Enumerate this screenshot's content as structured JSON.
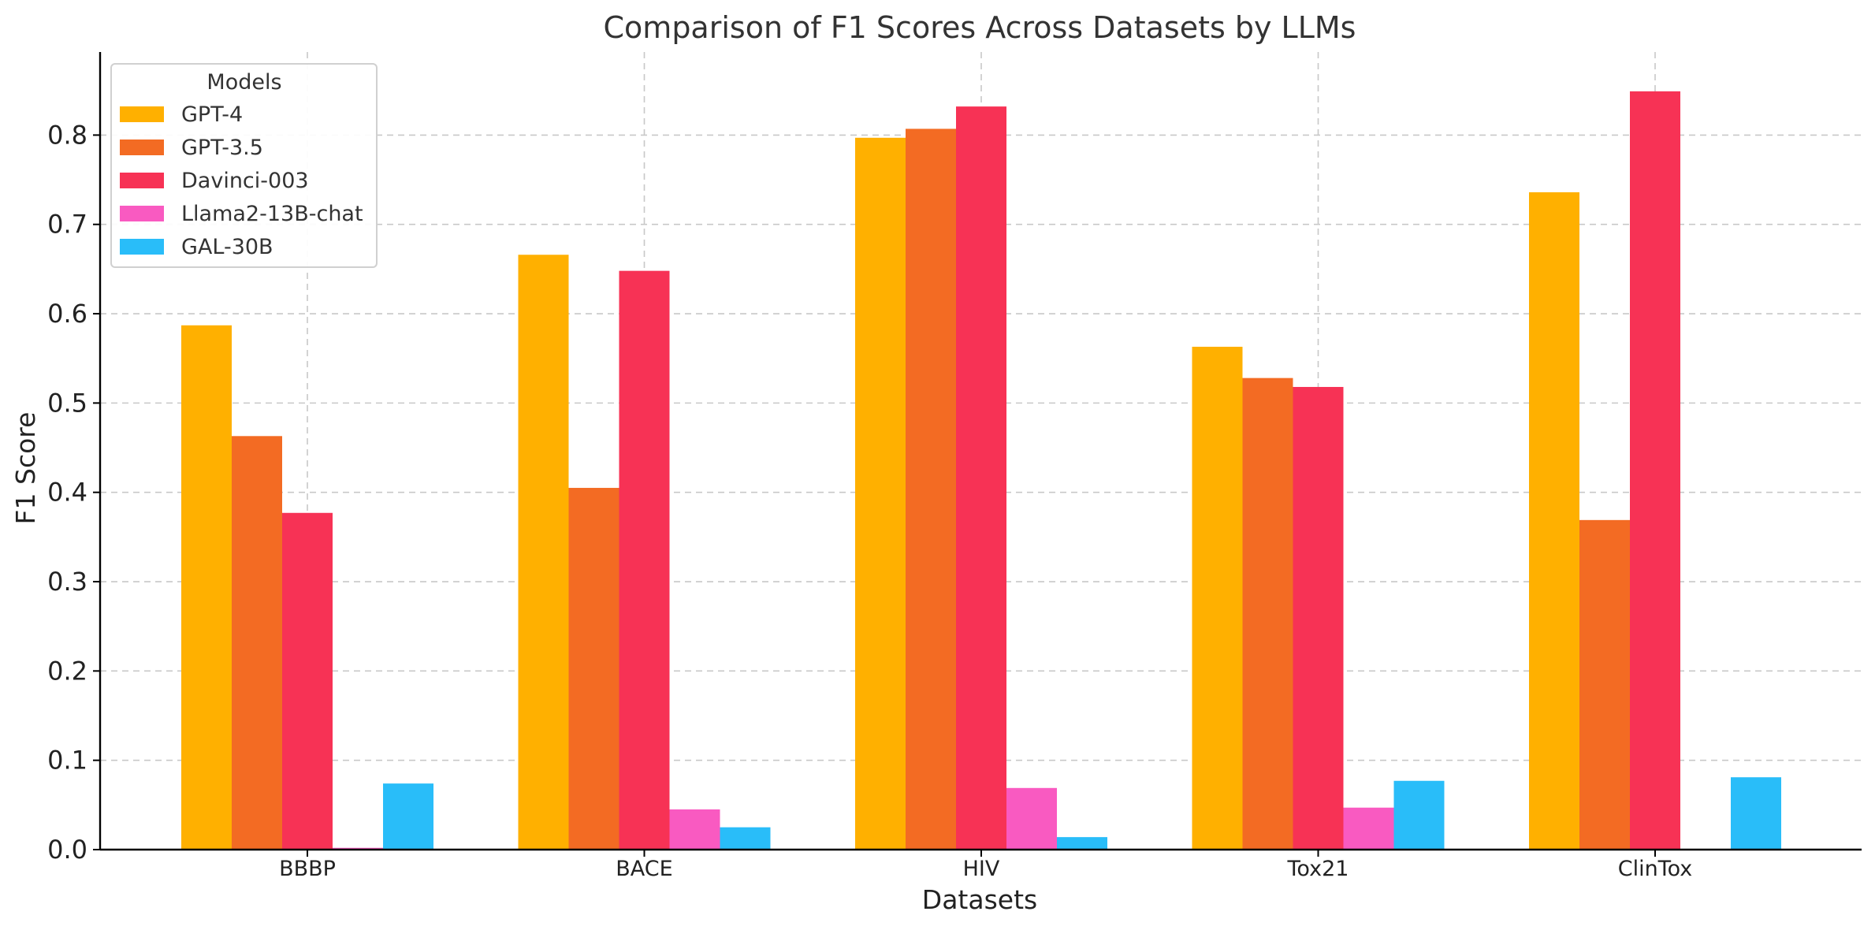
{
  "chart_data": {
    "type": "bar",
    "title": "Comparison of F1 Scores Across Datasets by LLMs",
    "xlabel": "Datasets",
    "ylabel": "F1 Score",
    "categories": [
      "BBBP",
      "BACE",
      "HIV",
      "Tox21",
      "ClinTox"
    ],
    "ylim": [
      0,
      0.893
    ],
    "yticks": [
      0.0,
      0.1,
      0.2,
      0.3,
      0.4,
      0.5,
      0.6,
      0.7,
      0.8
    ],
    "ytick_labels": [
      "0.0",
      "0.1",
      "0.2",
      "0.3",
      "0.4",
      "0.5",
      "0.6",
      "0.7",
      "0.8"
    ],
    "grid": true,
    "legend": {
      "title": "Models",
      "placement": "top-left"
    },
    "series": [
      {
        "name": "GPT-4",
        "color": "#FFB000",
        "values": [
          0.587,
          0.666,
          0.797,
          0.563,
          0.736
        ]
      },
      {
        "name": "GPT-3.5",
        "color": "#F36B23",
        "values": [
          0.463,
          0.405,
          0.807,
          0.528,
          0.369
        ]
      },
      {
        "name": "Davinci-003",
        "color": "#F73255",
        "values": [
          0.377,
          0.648,
          0.832,
          0.518,
          0.849
        ]
      },
      {
        "name": "Llama2-13B-chat",
        "color": "#F95AC1",
        "values": [
          0.002,
          0.045,
          0.069,
          0.047,
          0.0
        ]
      },
      {
        "name": "GAL-30B",
        "color": "#29BDF9",
        "values": [
          0.074,
          0.025,
          0.014,
          0.077,
          0.081
        ]
      }
    ]
  }
}
